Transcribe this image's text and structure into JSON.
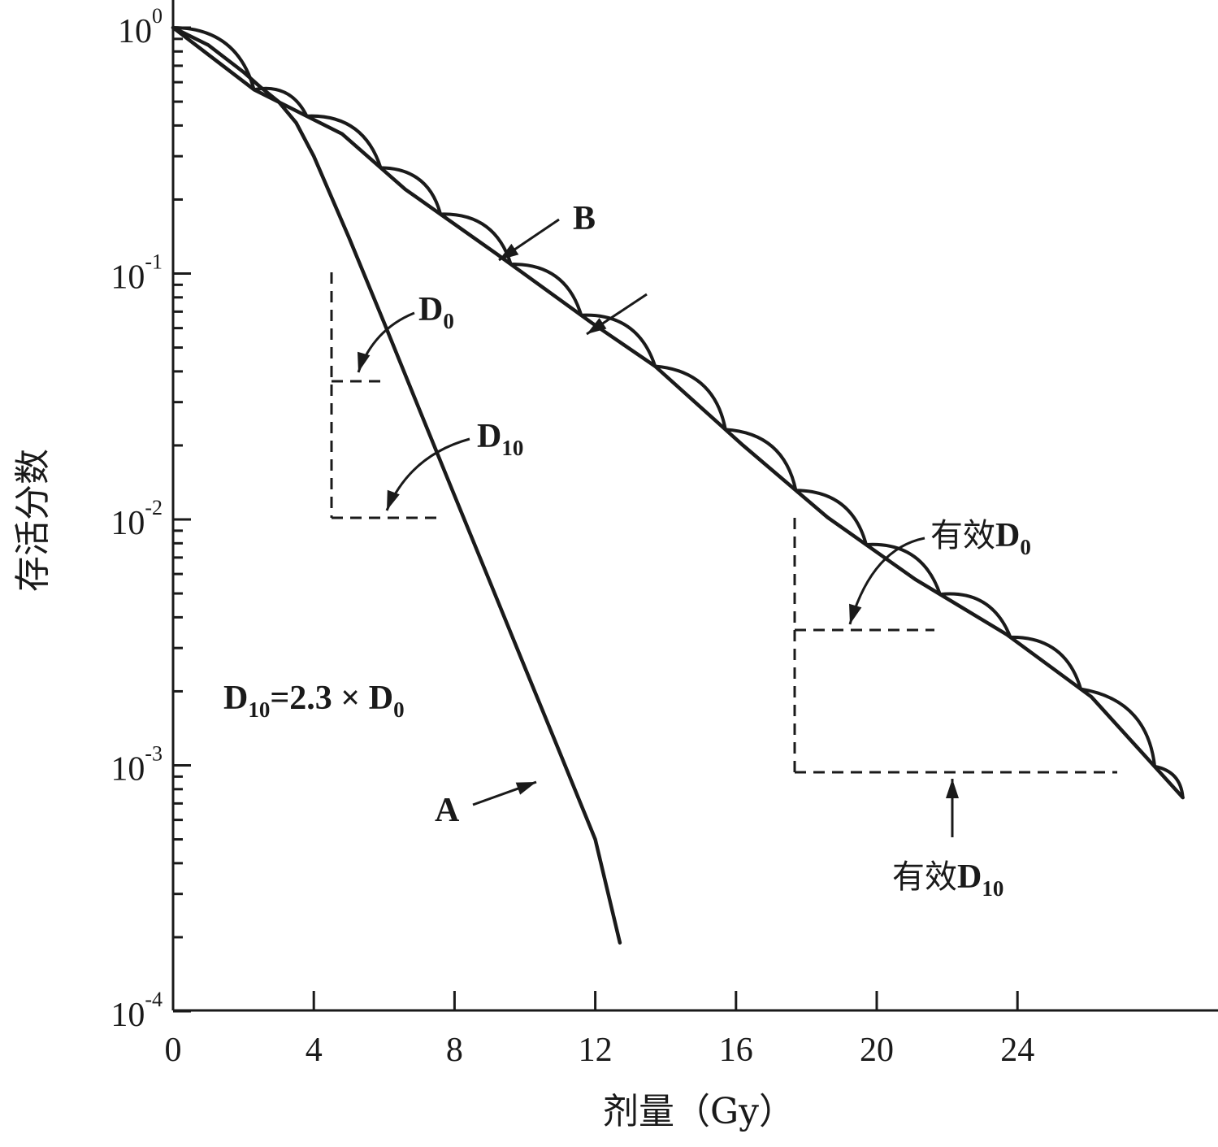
{
  "chart_data": {
    "type": "line",
    "title": "",
    "xlabel": "剂量（Gy）",
    "ylabel": "存活分数",
    "xlim": [
      0,
      29
    ],
    "ylim": [
      0.0001,
      1
    ],
    "yscale": "log",
    "x_ticks": [
      "0",
      "4",
      "8",
      "12",
      "16",
      "20",
      "24"
    ],
    "x_tick_values": [
      0,
      4,
      8,
      12,
      16,
      20,
      24
    ],
    "y_ticks": [
      {
        "base": "10",
        "exp": "0",
        "value": 1
      },
      {
        "base": "10",
        "exp": "-1",
        "value": 0.1
      },
      {
        "base": "10",
        "exp": "-2",
        "value": 0.01
      },
      {
        "base": "10",
        "exp": "-3",
        "value": 0.001
      },
      {
        "base": "10",
        "exp": "-4",
        "value": 0.0001
      }
    ],
    "grid": false,
    "series": [
      {
        "name": "A",
        "x": [
          0,
          1,
          2,
          2.5,
          3,
          3.5,
          4,
          5,
          6,
          7,
          8,
          9,
          10,
          11,
          12,
          12.7
        ],
        "y": [
          1,
          0.85,
          0.66,
          0.57,
          0.5,
          0.41,
          0.3,
          0.14,
          0.063,
          0.028,
          0.0125,
          0.0056,
          0.0025,
          0.00112,
          0.0005,
          0.00019
        ]
      },
      {
        "name": "B",
        "x": [
          0,
          2.3,
          4.8,
          6.6,
          9.2,
          11.9,
          13.7,
          16.2,
          18.6,
          21.1,
          23.7,
          26.1,
          28.7
        ],
        "y": [
          1,
          0.56,
          0.37,
          0.22,
          0.12,
          0.063,
          0.042,
          0.02,
          0.0102,
          0.0057,
          0.0034,
          0.0019,
          0.00074
        ]
      }
    ],
    "fractions_B": [
      0,
      2.3,
      3.8,
      5.9,
      7.6,
      9.6,
      11.6,
      13.7,
      15.7,
      17.7,
      19.7,
      21.8,
      23.8,
      25.8,
      27.9
    ],
    "annotations": {
      "label_A": "A",
      "label_B": "B",
      "d0": {
        "base": "D",
        "sub": "0"
      },
      "d10": {
        "base": "D",
        "sub": "10"
      },
      "eff_d0": {
        "prefix": "有效",
        "base": "D",
        "sub": "0"
      },
      "eff_d10": {
        "prefix": "有效",
        "base": "D",
        "sub": "10"
      },
      "formula": {
        "lhs_base": "D",
        "lhs_sub": "10",
        "mid": "=2.3 × ",
        "rhs_base": "D",
        "rhs_sub": "0"
      }
    },
    "colors": {
      "ink": "#1a1a1a",
      "background": "#ffffff"
    }
  }
}
